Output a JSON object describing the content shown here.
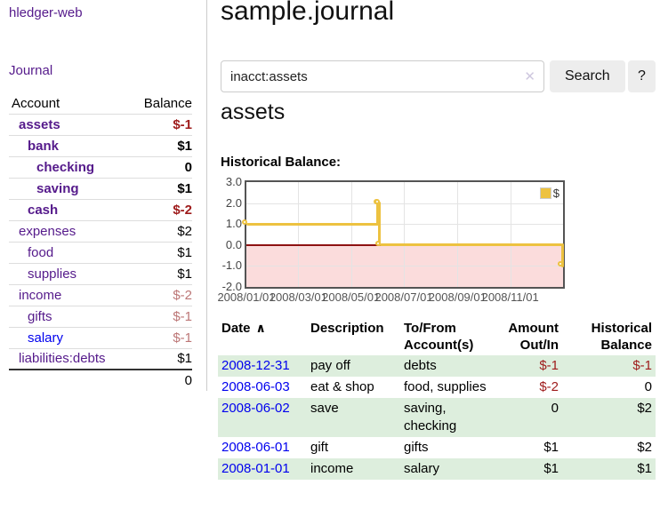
{
  "sidebar": {
    "app_title": "hledger-web",
    "journal_link": "Journal",
    "accounts": {
      "header_account": "Account",
      "header_balance": "Balance",
      "rows": [
        {
          "account": "assets",
          "balance": "$-1",
          "depth": 0,
          "bold": true,
          "balance_tone": "neg",
          "link_tone": "purple"
        },
        {
          "account": "bank",
          "balance": "$1",
          "depth": 1,
          "bold": true,
          "balance_tone": "pos",
          "link_tone": "purple"
        },
        {
          "account": "checking",
          "balance": "0",
          "depth": 2,
          "bold": true,
          "balance_tone": "pos",
          "link_tone": "purple"
        },
        {
          "account": "saving",
          "balance": "$1",
          "depth": 2,
          "bold": true,
          "balance_tone": "pos",
          "link_tone": "purple"
        },
        {
          "account": "cash",
          "balance": "$-2",
          "depth": 1,
          "bold": true,
          "balance_tone": "neg",
          "link_tone": "purple"
        },
        {
          "account": "expenses",
          "balance": "$2",
          "depth": 0,
          "bold": false,
          "balance_tone": "pos",
          "link_tone": "purple"
        },
        {
          "account": "food",
          "balance": "$1",
          "depth": 1,
          "bold": false,
          "balance_tone": "pos",
          "link_tone": "purple"
        },
        {
          "account": "supplies",
          "balance": "$1",
          "depth": 1,
          "bold": false,
          "balance_tone": "pos",
          "link_tone": "purple"
        },
        {
          "account": "income",
          "balance": "$-2",
          "depth": 0,
          "bold": false,
          "balance_tone": "mneg",
          "link_tone": "purple"
        },
        {
          "account": "gifts",
          "balance": "$-1",
          "depth": 1,
          "bold": false,
          "balance_tone": "mneg",
          "link_tone": "purple"
        },
        {
          "account": "salary",
          "balance": "$-1",
          "depth": 1,
          "bold": false,
          "balance_tone": "mneg",
          "link_tone": "blue"
        },
        {
          "account": "liabilities:debts",
          "balance": "$1",
          "depth": 0,
          "bold": false,
          "balance_tone": "pos",
          "link_tone": "purple"
        }
      ],
      "total": "0"
    }
  },
  "main": {
    "title": "sample.journal",
    "search": {
      "value": "inacct:assets",
      "button_label": "Search",
      "help_label": "?"
    },
    "account_heading": "assets",
    "chart_label": "Historical Balance:"
  },
  "icons": {
    "clear": "✕",
    "sort_ascending": "∧",
    "legend_swatch": "series-color-square"
  },
  "colors": {
    "link_purple": "#551a8b",
    "link_blue": "#0000ee",
    "negative_strong": "#9e1b1b",
    "negative_muted": "#bc7676",
    "row_stripe_green": "#ddeedd",
    "series_gold": "#edc240",
    "negative_region_pink": "#fbdcdc",
    "zero_line_red": "#8e1212",
    "plot_border": "#545454",
    "gridline": "#e4e4e4",
    "button_bg": "#ededed"
  },
  "chart_data": {
    "type": "line",
    "step": "after",
    "title": "Historical Balance",
    "x": [
      "2008-01-01",
      "2008-06-01",
      "2008-06-02",
      "2008-06-03",
      "2008-12-31"
    ],
    "series": [
      {
        "name": "$",
        "values": [
          1,
          2,
          2,
          0,
          -1
        ],
        "color": "#edc240"
      }
    ],
    "x_range": [
      "2008-01-01",
      "2009-01-01"
    ],
    "ylim": [
      -2,
      3
    ],
    "y_ticks": [
      "3.0",
      "2.0",
      "1.0",
      "0.0",
      "-1.0",
      "-2.0"
    ],
    "x_ticks": [
      "2008/01/01",
      "2008/03/01",
      "2008/05/01",
      "2008/07/01",
      "2008/09/01",
      "2008/11/01"
    ],
    "grid": true,
    "legend": {
      "label": "$",
      "position": "top-right"
    },
    "negative_region": true,
    "zero_line": true
  },
  "register": {
    "columns": [
      {
        "label": "Date",
        "sorted": "ascending"
      },
      {
        "label": "Description"
      },
      {
        "label": "To/From Account(s)"
      },
      {
        "label": "Amount Out/In",
        "align": "right"
      },
      {
        "label": "Historical Balance",
        "align": "right"
      }
    ],
    "rows": [
      {
        "date": "2008-12-31",
        "description": "pay off",
        "accounts": "debts",
        "amount": "$-1",
        "amount_negative": true,
        "balance": "$-1",
        "balance_negative": true
      },
      {
        "date": "2008-06-03",
        "description": "eat & shop",
        "accounts": "food, supplies",
        "amount": "$-2",
        "amount_negative": true,
        "balance": "0",
        "balance_negative": false
      },
      {
        "date": "2008-06-02",
        "description": "save",
        "accounts": "saving, checking",
        "amount": "0",
        "amount_negative": false,
        "balance": "$2",
        "balance_negative": false
      },
      {
        "date": "2008-06-01",
        "description": "gift",
        "accounts": "gifts",
        "amount": "$1",
        "amount_negative": false,
        "balance": "$2",
        "balance_negative": false
      },
      {
        "date": "2008-01-01",
        "description": "income",
        "accounts": "salary",
        "amount": "$1",
        "amount_negative": false,
        "balance": "$1",
        "balance_negative": false
      }
    ]
  }
}
